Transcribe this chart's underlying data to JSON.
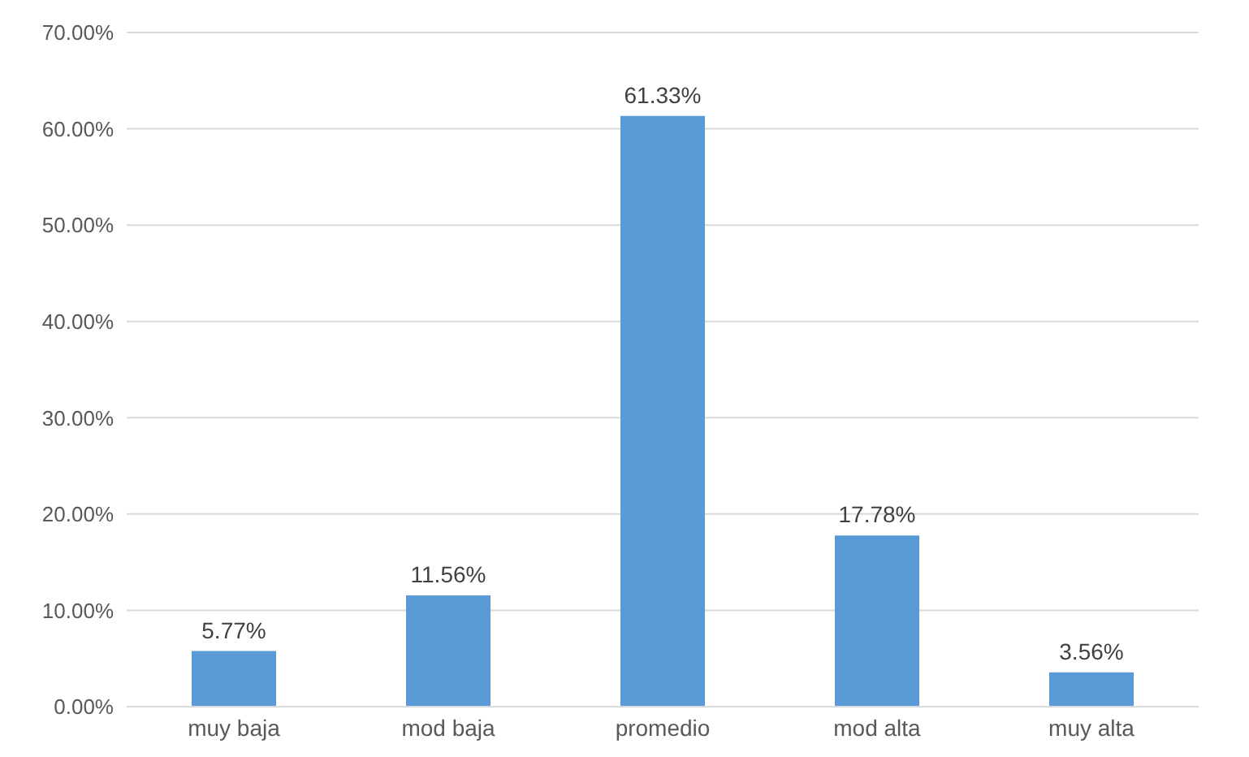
{
  "chart_data": {
    "type": "bar",
    "categories": [
      "muy baja",
      "mod baja",
      "promedio",
      "mod alta",
      "muy alta"
    ],
    "values": [
      5.77,
      11.56,
      61.33,
      17.78,
      3.56
    ],
    "value_labels": [
      "5.77%",
      "11.56%",
      "61.33%",
      "17.78%",
      "3.56%"
    ],
    "color": "#5b9bd5",
    "ylim": [
      0,
      70
    ],
    "yticks": [
      {
        "value": 0,
        "label": "0.00%"
      },
      {
        "value": 10,
        "label": "10.00%"
      },
      {
        "value": 20,
        "label": "20.00%"
      },
      {
        "value": 30,
        "label": "30.00%"
      },
      {
        "value": 40,
        "label": "40.00%"
      },
      {
        "value": 50,
        "label": "50.00%"
      },
      {
        "value": 60,
        "label": "60.00%"
      },
      {
        "value": 70,
        "label": "70.00%"
      }
    ],
    "grid": "y"
  }
}
